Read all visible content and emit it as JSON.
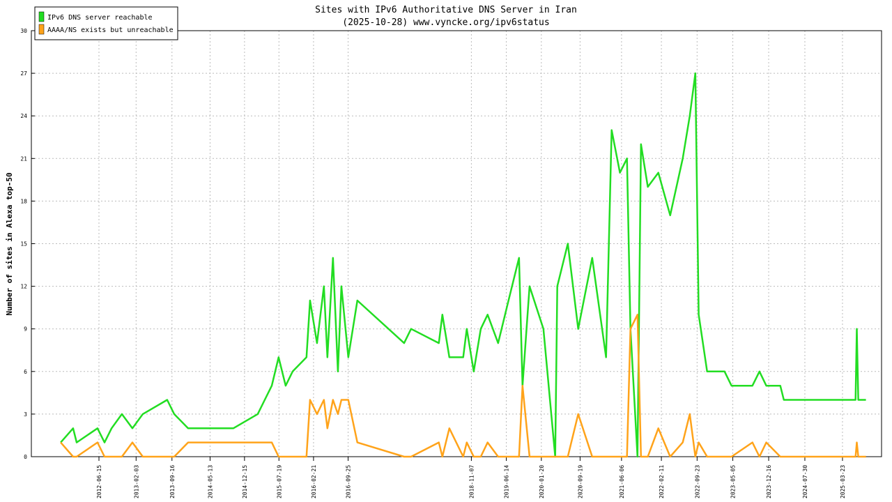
{
  "chart_data": {
    "type": "line",
    "title": "Sites with IPv6 Authoritative DNS Server in Iran",
    "subtitle": "(2025-10-28) www.vyncke.org/ipv6status",
    "y_label": "Number of sites in Alexa top-50",
    "x": [
      "2011-10-19",
      "2012-01-05",
      "2012-01-27",
      "2012-06-06",
      "2012-07-20",
      "2012-09-02",
      "2012-11-06",
      "2013-01-11",
      "2013-03-17",
      "2013-08-17",
      "2013-09-30",
      "2013-12-26",
      "2014-03-24",
      "2014-10-06",
      "2015-03-08",
      "2015-04-21",
      "2015-06-04",
      "2015-07-17",
      "2015-08-30",
      "2015-10-13",
      "2016-01-08",
      "2016-01-30",
      "2016-03-14",
      "2016-04-26",
      "2016-05-18",
      "2016-06-22",
      "2016-07-23",
      "2016-08-14",
      "2016-09-26",
      "2016-11-22",
      "2017-09-11",
      "2017-10-25",
      "2018-04-17",
      "2018-05-09",
      "2018-06-22",
      "2018-09-17",
      "2018-10-09",
      "2018-11-22",
      "2019-01-05",
      "2019-02-17",
      "2019-04-24",
      "2019-06-28",
      "2019-09-02",
      "2019-09-24",
      "2019-11-07",
      "2020-02-02",
      "2020-04-16",
      "2020-04-29",
      "2020-07-04",
      "2020-09-07",
      "2020-12-04",
      "2021-03-01",
      "2021-04-05",
      "2021-05-27",
      "2021-07-10",
      "2021-08-01",
      "2021-09-14",
      "2021-10-06",
      "2021-11-18",
      "2022-01-23",
      "2022-04-07",
      "2022-06-25",
      "2022-08-08",
      "2022-09-12",
      "2022-10-03",
      "2022-11-25",
      "2023-03-14",
      "2023-04-27",
      "2023-09-05",
      "2023-10-19",
      "2023-12-01",
      "2024-02-27",
      "2024-03-20",
      "2025-06-13",
      "2025-06-21",
      "2025-06-30",
      "2025-08-17"
    ],
    "series": [
      {
        "name": "IPv6 DNS server reachable",
        "color": "#22dd22",
        "values": [
          1,
          2,
          1,
          2,
          1,
          2,
          3,
          2,
          3,
          4,
          3,
          2,
          2,
          2,
          3,
          4,
          5,
          7,
          5,
          6,
          7,
          11,
          8,
          12,
          7,
          14,
          6,
          12,
          7,
          11,
          8,
          9,
          8,
          10,
          7,
          7,
          9,
          6,
          9,
          10,
          8,
          11,
          14,
          5,
          12,
          9,
          0,
          12,
          15,
          9,
          14,
          7,
          23,
          20,
          21,
          9,
          0,
          22,
          19,
          20,
          17,
          21,
          24,
          27,
          10,
          6,
          6,
          5,
          5,
          6,
          5,
          5,
          4,
          4,
          9,
          4,
          4
        ]
      },
      {
        "name": "AAAA/NS exists but unreachable",
        "color": "#ffa31a",
        "values": [
          1,
          0,
          0,
          1,
          0,
          0,
          0,
          1,
          0,
          0,
          0,
          1,
          1,
          1,
          1,
          1,
          1,
          0,
          0,
          0,
          0,
          4,
          3,
          4,
          2,
          4,
          3,
          4,
          4,
          1,
          0,
          0,
          1,
          0,
          2,
          0,
          1,
          0,
          0,
          1,
          0,
          0,
          0,
          5,
          0,
          0,
          0,
          0,
          0,
          3,
          0,
          0,
          0,
          0,
          0,
          9,
          10,
          0,
          0,
          2,
          0,
          1,
          3,
          0,
          1,
          0,
          0,
          0,
          1,
          0,
          1,
          0,
          0,
          0,
          1,
          0,
          0
        ]
      }
    ],
    "xlim": [
      "2011-04-18",
      "2025-11-23"
    ],
    "xticks": [
      "2012-06-15",
      "2013-02-03",
      "2013-09-16",
      "2014-05-13",
      "2014-12-15",
      "2015-07-19",
      "2016-02-21",
      "2016-09-25",
      "2018-11-07",
      "2019-06-14",
      "2020-01-20",
      "2020-09-19",
      "2021-06-06",
      "2022-02-11",
      "2022-09-23",
      "2023-05-05",
      "2023-12-16",
      "2024-07-30",
      "2025-03-23"
    ],
    "ylim": [
      0,
      30
    ],
    "yticks": [
      0,
      3,
      6,
      9,
      12,
      15,
      18,
      21,
      24,
      27,
      30
    ],
    "grid": true,
    "legend": "upper left"
  }
}
